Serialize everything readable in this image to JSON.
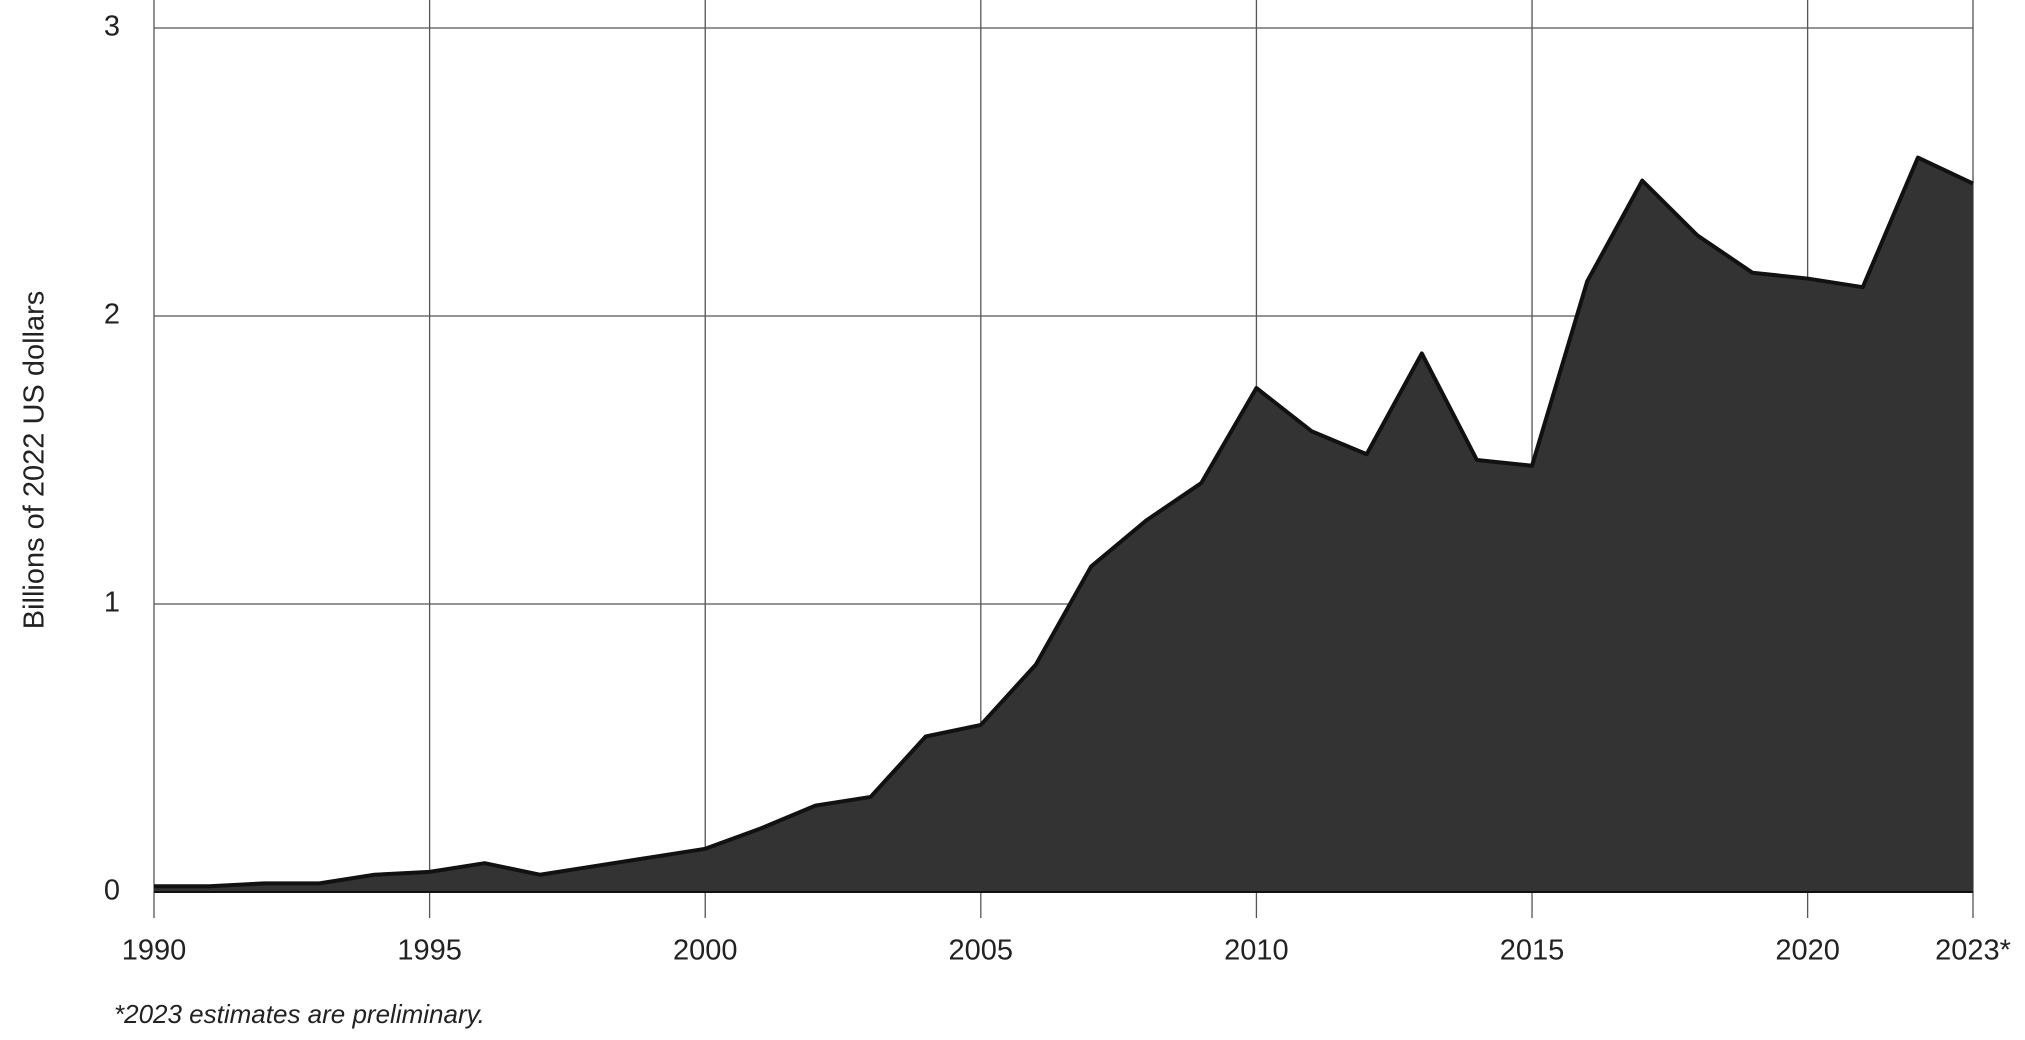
{
  "chart_data": {
    "type": "area",
    "y_label": "Billions of 2022 US dollars",
    "footnote": "*2023 estimates are preliminary.",
    "x": [
      1990,
      1991,
      1992,
      1993,
      1994,
      1995,
      1996,
      1997,
      1998,
      1999,
      2000,
      2001,
      2002,
      2003,
      2004,
      2005,
      2006,
      2007,
      2008,
      2009,
      2010,
      2011,
      2012,
      2013,
      2014,
      2015,
      2016,
      2017,
      2018,
      2019,
      2020,
      2021,
      2022,
      2023
    ],
    "values": [
      0.02,
      0.02,
      0.03,
      0.03,
      0.06,
      0.07,
      0.1,
      0.06,
      0.09,
      0.12,
      0.15,
      0.22,
      0.3,
      0.33,
      0.54,
      0.58,
      0.79,
      1.13,
      1.29,
      1.42,
      1.75,
      1.6,
      1.52,
      1.87,
      1.5,
      1.48,
      2.12,
      2.47,
      2.28,
      2.15,
      2.13,
      2.1,
      2.55,
      2.46
    ],
    "color": "#333333",
    "line_color": "#111111",
    "xlim": [
      1990,
      2023
    ],
    "xticks": [
      1990,
      1995,
      2000,
      2005,
      2010,
      2015,
      2020,
      {
        "value": 2023,
        "label": "2023*"
      }
    ],
    "ylim": [
      0,
      3
    ],
    "yticks": [
      0,
      1,
      2,
      3
    ],
    "grid": true
  }
}
